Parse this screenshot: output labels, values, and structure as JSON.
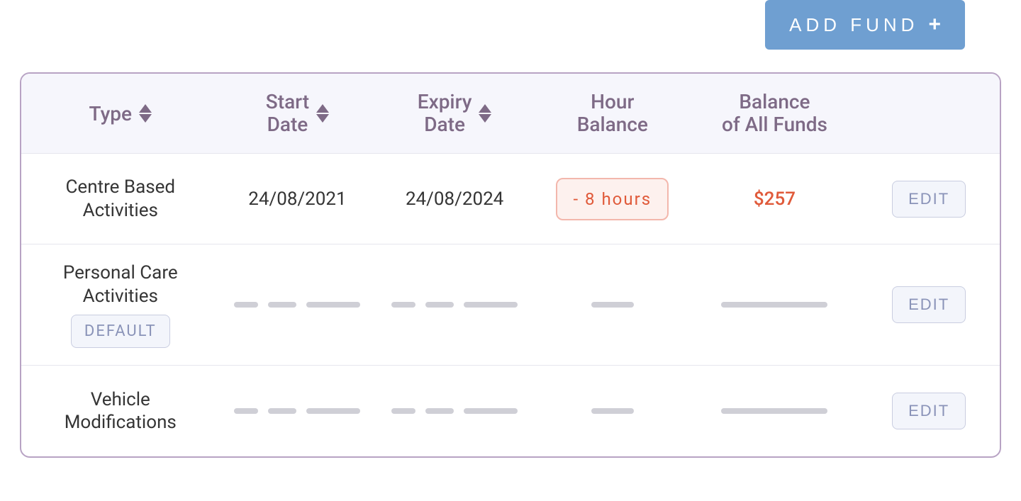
{
  "addFund": {
    "label": "ADD FUND"
  },
  "columns": {
    "type": "Type",
    "startDate": "Start\nDate",
    "expiryDate": "Expiry\nDate",
    "hourBalance": "Hour\nBalance",
    "balanceAll": "Balance\nof All Funds"
  },
  "colors": {
    "accentBlue": "#6f9fd1",
    "headerText": "#7e6a86",
    "bodyText": "#353535",
    "negative": "#e05a3a",
    "pillBorder": "#f3b7ac",
    "pillBg": "#fdf1ee",
    "editText": "#8a93b8",
    "editBg": "#f3f5fb",
    "editBorder": "#c9cde0",
    "tableBorder": "#b8a3c4",
    "headerBg": "#f6f6fc",
    "divider": "#e6e6ee",
    "placeholder": "#cfcfd6"
  },
  "labels": {
    "edit": "EDIT",
    "default": "DEFAULT"
  },
  "rows": [
    {
      "type": "Centre Based\nActivities",
      "startDate": "24/08/2021",
      "expiryDate": "24/08/2024",
      "hourBalance": "- 8 hours",
      "balance": "$257",
      "isDefault": false,
      "hasData": true
    },
    {
      "type": "Personal Care\nActivities",
      "isDefault": true,
      "hasData": false
    },
    {
      "type": "Vehicle\nModifications",
      "isDefault": false,
      "hasData": false
    }
  ]
}
